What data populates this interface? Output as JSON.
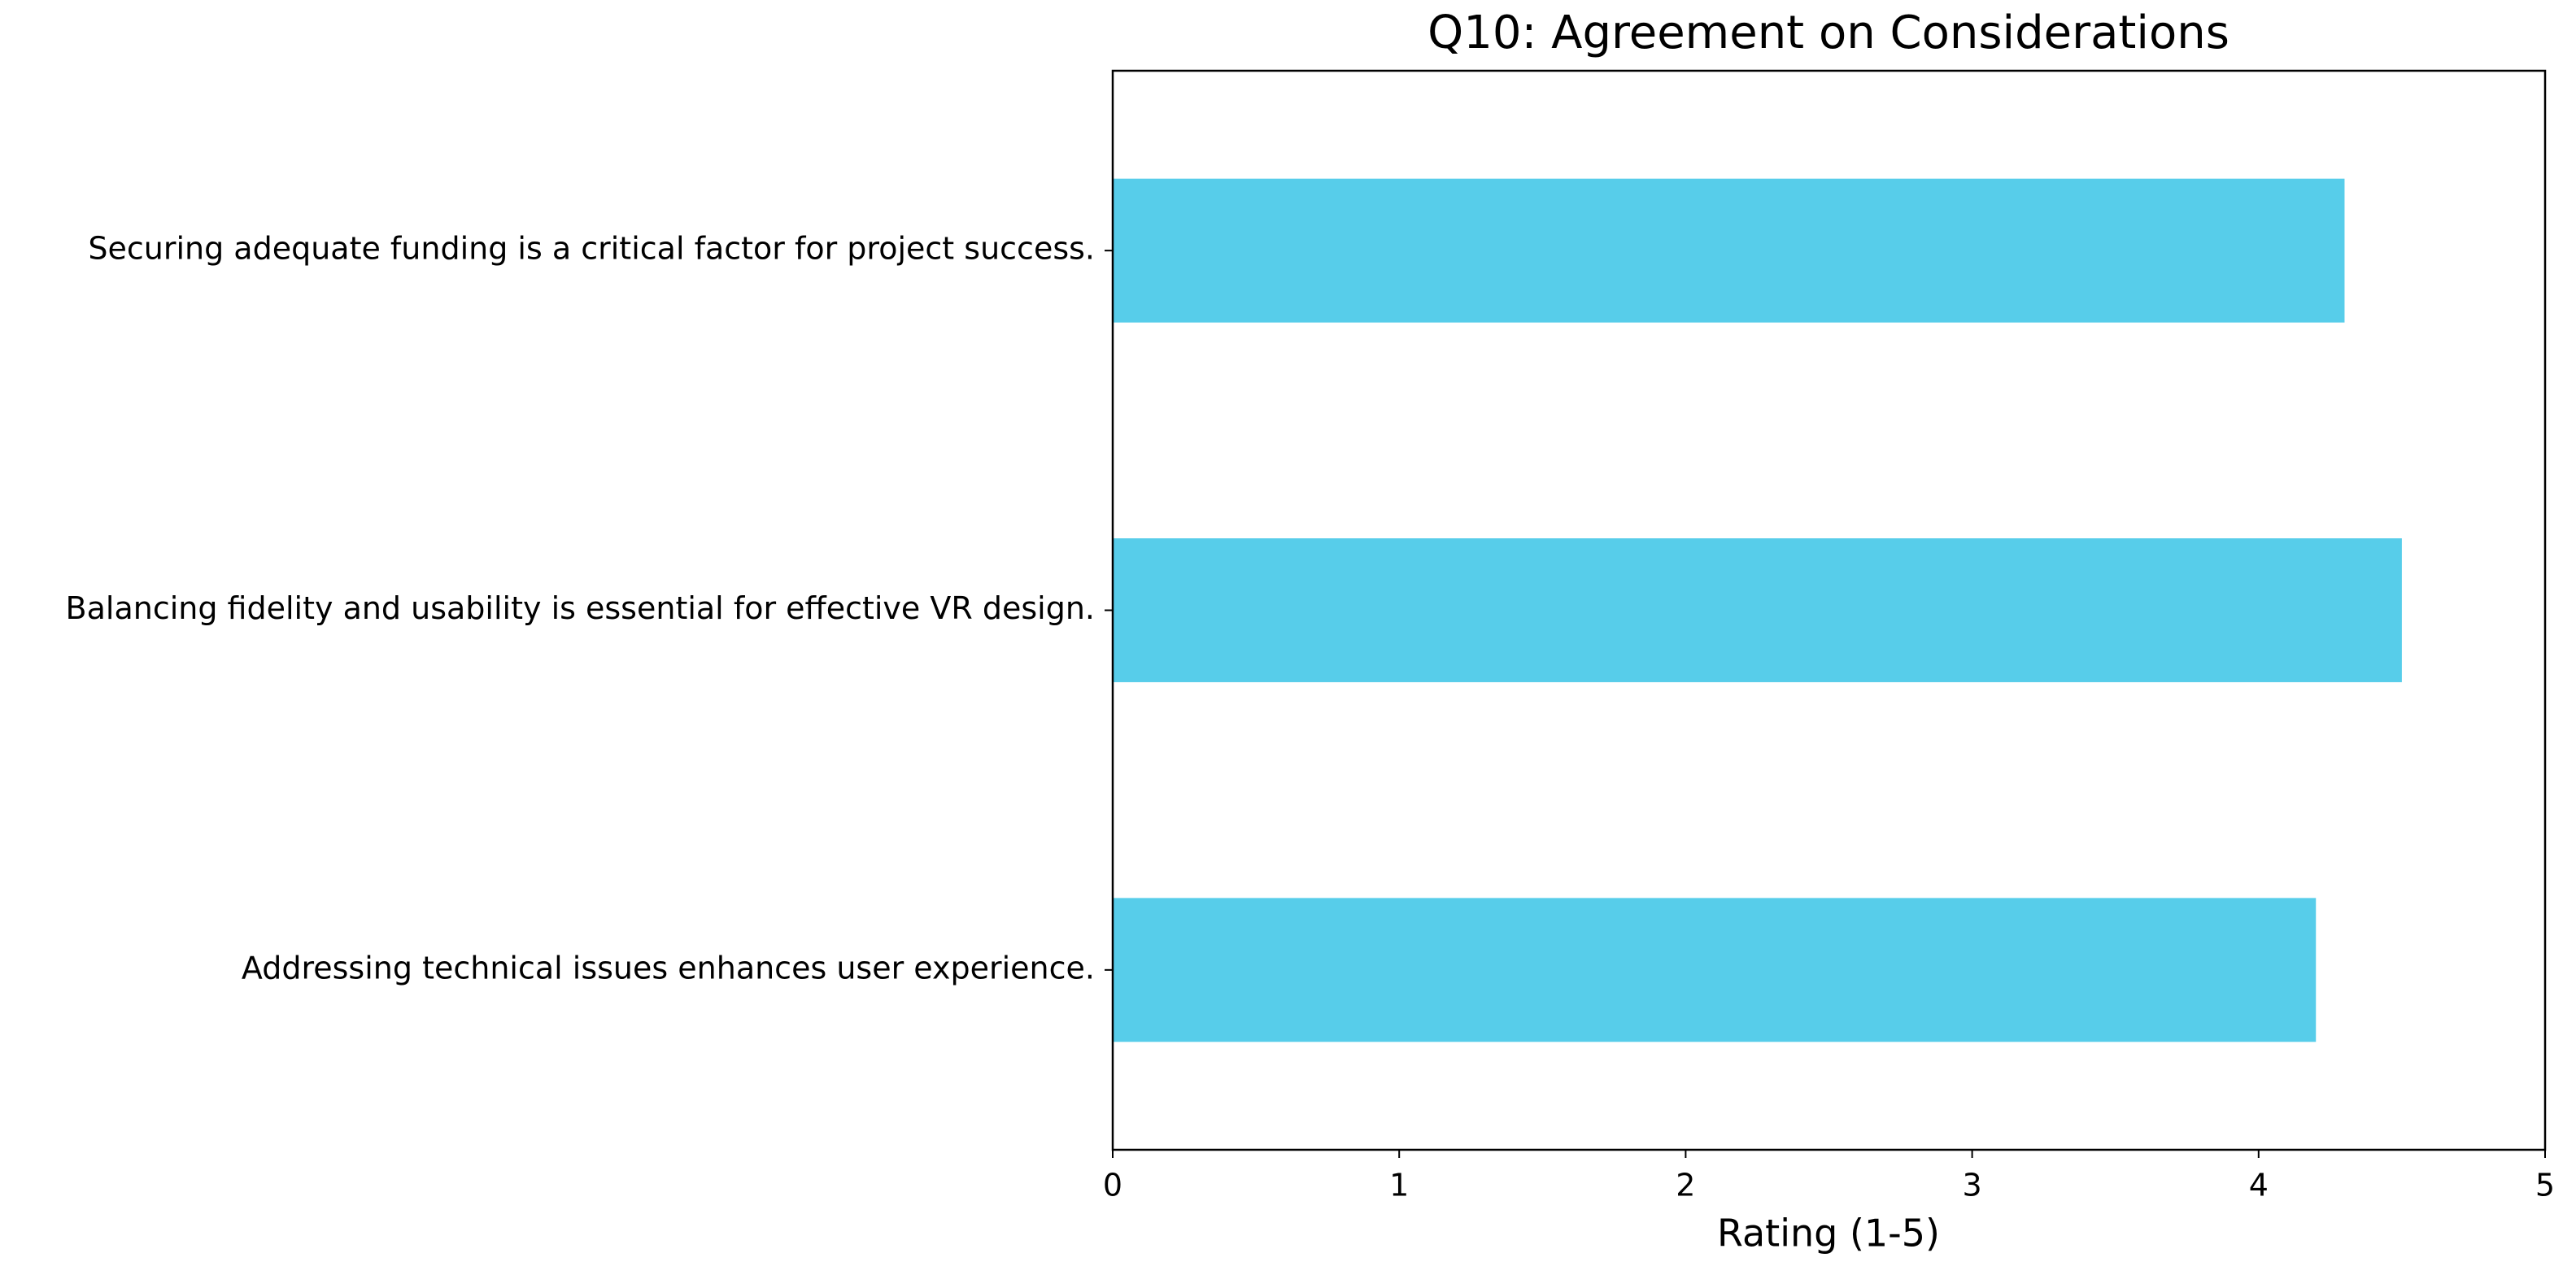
{
  "chart_data": {
    "type": "bar",
    "orientation": "horizontal",
    "title": "Q10: Agreement on Considerations",
    "x_label": "Rating (1-5)",
    "categories": [
      "Securing adequate funding is a critical factor for project success.",
      "Balancing fidelity and usability is essential for effective VR design.",
      "Addressing technical issues enhances user experience."
    ],
    "values": [
      4.3,
      4.5,
      4.2
    ],
    "color": "#57cdea",
    "xlim": [
      0,
      5
    ],
    "xticks": [
      0,
      1,
      2,
      3,
      4,
      5
    ]
  }
}
